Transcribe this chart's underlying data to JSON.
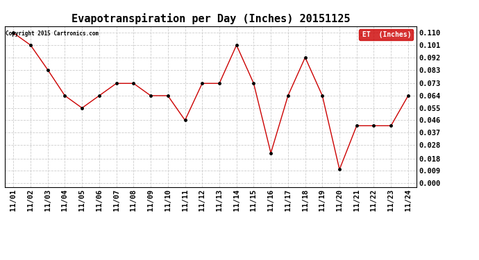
{
  "title": "Evapotranspiration per Day (Inches) 20151125",
  "copyright": "Copyright 2015 Cartronics.com",
  "legend_label": "ET  (Inches)",
  "legend_bg": "#cc0000",
  "legend_text_color": "#ffffff",
  "x_labels": [
    "11/01",
    "11/02",
    "11/03",
    "11/04",
    "11/05",
    "11/06",
    "11/07",
    "11/08",
    "11/09",
    "11/10",
    "11/11",
    "11/12",
    "11/13",
    "11/14",
    "11/15",
    "11/16",
    "11/17",
    "11/18",
    "11/19",
    "11/20",
    "11/21",
    "11/22",
    "11/23",
    "11/24"
  ],
  "y_values": [
    0.11,
    0.101,
    0.083,
    0.064,
    0.055,
    0.064,
    0.073,
    0.073,
    0.064,
    0.064,
    0.046,
    0.073,
    0.073,
    0.101,
    0.073,
    0.022,
    0.064,
    0.092,
    0.064,
    0.01,
    0.042,
    0.042,
    0.042,
    0.064
  ],
  "y_ticks": [
    0.0,
    0.009,
    0.018,
    0.028,
    0.037,
    0.046,
    0.055,
    0.064,
    0.073,
    0.083,
    0.092,
    0.101,
    0.11
  ],
  "y_tick_labels": [
    "0.000",
    "0.009",
    "0.018",
    "0.028",
    "0.037",
    "0.046",
    "0.055",
    "0.064",
    "0.073",
    "0.083",
    "0.092",
    "0.101",
    "0.110"
  ],
  "line_color": "#cc0000",
  "marker_color": "#000000",
  "background_color": "#ffffff",
  "grid_color": "#cccccc",
  "ylim": [
    -0.003,
    0.115
  ],
  "title_fontsize": 11,
  "tick_fontsize": 7.5
}
